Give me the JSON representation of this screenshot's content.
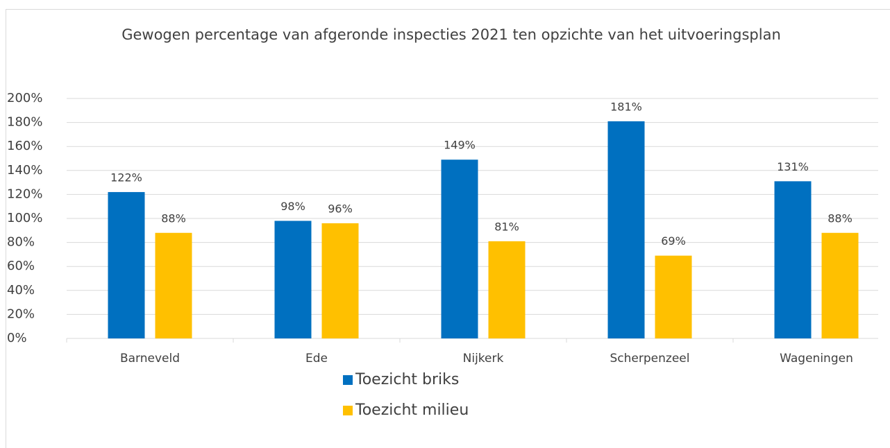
{
  "chart_data": {
    "type": "bar",
    "title": "Gewogen percentage van afgeronde inspecties 2021 ten opzichte van het uitvoeringsplan",
    "categories": [
      "Barneveld",
      "Ede",
      "Nijkerk",
      "Scherpenzeel",
      "Wageningen"
    ],
    "series": [
      {
        "name": "Toezicht briks",
        "color": "#0070c0",
        "values": [
          122,
          98,
          149,
          181,
          131
        ],
        "value_labels": [
          "122%",
          "98%",
          "149%",
          "181%",
          "131%"
        ]
      },
      {
        "name": "Toezicht milieu",
        "color": "#ffc000",
        "values": [
          88,
          96,
          81,
          69,
          88
        ],
        "value_labels": [
          "88%",
          "96%",
          "81%",
          "69%",
          "88%"
        ]
      }
    ],
    "ylim": [
      0,
      200
    ],
    "yticks": [
      {
        "value": 0,
        "label": "0%"
      },
      {
        "value": 20,
        "label": "20%"
      },
      {
        "value": 40,
        "label": "40%"
      },
      {
        "value": 60,
        "label": "60%"
      },
      {
        "value": 80,
        "label": "80%"
      },
      {
        "value": 100,
        "label": "100%"
      },
      {
        "value": 120,
        "label": "120%"
      },
      {
        "value": 140,
        "label": "140%"
      },
      {
        "value": 160,
        "label": "160%"
      },
      {
        "value": 180,
        "label": "180%"
      },
      {
        "value": 200,
        "label": "200%"
      }
    ],
    "grid": true,
    "legend": "bottom"
  }
}
